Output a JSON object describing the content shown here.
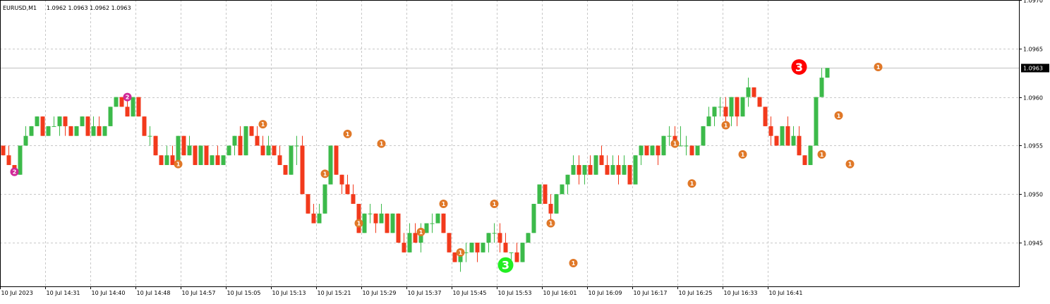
{
  "header": {
    "symbol": "EURUSD,M1",
    "ohlc": "1.0962 1.0963 1.0962 1.0963"
  },
  "price_label": {
    "value": "1.0963",
    "bg": "#000000",
    "line_color": "#c0c0c0"
  },
  "colors": {
    "bull": "#3cba4a",
    "bear": "#f23a1c",
    "grid": "#c8c8c8",
    "axis": "#000000",
    "marker_orange": "#e07828",
    "marker_magenta": "#d02898",
    "marker_red": "#ff0000",
    "marker_green": "#22ee22"
  },
  "chart_data": {
    "type": "candlestick",
    "title": "EURUSD,M1",
    "ylim": [
      1.09405,
      1.097
    ],
    "y_ticks": [
      "1.0970",
      "1.0965",
      "1.0960",
      "1.0955",
      "1.0950",
      "1.0945"
    ],
    "x_ticks": [
      "10 Jul 2023",
      "10 Jul 14:31",
      "10 Jul 14:40",
      "10 Jul 14:48",
      "10 Jul 14:57",
      "10 Jul 15:05",
      "10 Jul 15:13",
      "10 Jul 15:21",
      "10 Jul 15:29",
      "10 Jul 15:37",
      "10 Jul 15:45",
      "10 Jul 15:53",
      "10 Jul 16:01",
      "10 Jul 16:09",
      "10 Jul 16:17",
      "10 Jul 16:25",
      "10 Jul 16:33",
      "10 Jul 16:41"
    ],
    "candles": [
      [
        1.0955,
        1.0955,
        1.0954,
        1.0954
      ],
      [
        1.0954,
        1.0955,
        1.0953,
        1.0953
      ],
      [
        1.0953,
        1.0953,
        1.0952,
        1.0952
      ],
      [
        1.0952,
        1.0955,
        1.0952,
        1.0955
      ],
      [
        1.0955,
        1.0957,
        1.0955,
        1.0956
      ],
      [
        1.0956,
        1.0957,
        1.0956,
        1.0957
      ],
      [
        1.0957,
        1.0958,
        1.0957,
        1.0958
      ],
      [
        1.0958,
        1.0958,
        1.0956,
        1.0956
      ],
      [
        1.0956,
        1.0957,
        1.0956,
        1.0957
      ],
      [
        1.0957,
        1.0958,
        1.0957,
        1.0957
      ],
      [
        1.0957,
        1.0958,
        1.0956,
        1.0958
      ],
      [
        1.0958,
        1.0958,
        1.0956,
        1.0957
      ],
      [
        1.0957,
        1.0957,
        1.0956,
        1.0956
      ],
      [
        1.0956,
        1.0957,
        1.0956,
        1.0957
      ],
      [
        1.0957,
        1.0958,
        1.0957,
        1.0958
      ],
      [
        1.0958,
        1.0958,
        1.0956,
        1.0956
      ],
      [
        1.0956,
        1.0958,
        1.0956,
        1.0957
      ],
      [
        1.0957,
        1.0958,
        1.0956,
        1.0956
      ],
      [
        1.0956,
        1.0957,
        1.0956,
        1.0957
      ],
      [
        1.0957,
        1.0959,
        1.0957,
        1.0959
      ],
      [
        1.0959,
        1.096,
        1.0959,
        1.096
      ],
      [
        1.096,
        1.096,
        1.0959,
        1.0959
      ],
      [
        1.0959,
        1.096,
        1.0958,
        1.0958
      ],
      [
        1.0958,
        1.096,
        1.0958,
        1.096
      ],
      [
        1.096,
        1.096,
        1.0958,
        1.0958
      ],
      [
        1.0958,
        1.0958,
        1.0956,
        1.0956
      ],
      [
        1.0956,
        1.0957,
        1.0955,
        1.0956
      ],
      [
        1.0956,
        1.0956,
        1.0954,
        1.0954
      ],
      [
        1.0954,
        1.0954,
        1.0953,
        1.0953
      ],
      [
        1.0953,
        1.0955,
        1.0953,
        1.0954
      ],
      [
        1.0954,
        1.0955,
        1.0953,
        1.0953
      ],
      [
        1.0953,
        1.0956,
        1.0953,
        1.0956
      ],
      [
        1.0956,
        1.0956,
        1.0954,
        1.0954
      ],
      [
        1.0954,
        1.0956,
        1.0954,
        1.0955
      ],
      [
        1.0955,
        1.0955,
        1.0953,
        1.0953
      ],
      [
        1.0953,
        1.0955,
        1.0953,
        1.0955
      ],
      [
        1.0955,
        1.0955,
        1.0953,
        1.0953
      ],
      [
        1.0953,
        1.0954,
        1.0953,
        1.0954
      ],
      [
        1.0954,
        1.0955,
        1.0953,
        1.0953
      ],
      [
        1.0953,
        1.0954,
        1.0953,
        1.0954
      ],
      [
        1.0954,
        1.0955,
        1.0954,
        1.0955
      ],
      [
        1.0955,
        1.0956,
        1.0954,
        1.0956
      ],
      [
        1.0956,
        1.0957,
        1.0954,
        1.0954
      ],
      [
        1.0954,
        1.0957,
        1.0954,
        1.0957
      ],
      [
        1.0957,
        1.0957,
        1.0956,
        1.0956
      ],
      [
        1.0956,
        1.0957,
        1.0955,
        1.0955
      ],
      [
        1.0955,
        1.0956,
        1.0954,
        1.0954
      ],
      [
        1.0954,
        1.0956,
        1.0954,
        1.0955
      ],
      [
        1.0955,
        1.0955,
        1.0954,
        1.0954
      ],
      [
        1.0954,
        1.0955,
        1.0953,
        1.0953
      ],
      [
        1.0953,
        1.0953,
        1.0952,
        1.0952
      ],
      [
        1.0952,
        1.0955,
        1.0952,
        1.0955
      ],
      [
        1.0955,
        1.0956,
        1.0953,
        1.0955
      ],
      [
        1.0955,
        1.0956,
        1.095,
        1.095
      ],
      [
        1.095,
        1.095,
        1.0948,
        1.0948
      ],
      [
        1.0948,
        1.0949,
        1.0947,
        1.0947
      ],
      [
        1.0947,
        1.0949,
        1.0947,
        1.0948
      ],
      [
        1.0948,
        1.0951,
        1.0948,
        1.0951
      ],
      [
        1.0951,
        1.0955,
        1.0951,
        1.0955
      ],
      [
        1.0955,
        1.0955,
        1.0952,
        1.0952
      ],
      [
        1.0952,
        1.0952,
        1.095,
        1.0951
      ],
      [
        1.0951,
        1.0952,
        1.095,
        1.095
      ],
      [
        1.095,
        1.0951,
        1.0949,
        1.0949
      ],
      [
        1.0949,
        1.0949,
        1.0946,
        1.0946
      ],
      [
        1.0946,
        1.0948,
        1.0946,
        1.0948
      ],
      [
        1.0948,
        1.0949,
        1.0947,
        1.0948
      ],
      [
        1.0948,
        1.0948,
        1.0946,
        1.0947
      ],
      [
        1.0947,
        1.0949,
        1.0947,
        1.0948
      ],
      [
        1.0948,
        1.0948,
        1.0946,
        1.0946
      ],
      [
        1.0946,
        1.0948,
        1.0946,
        1.0948
      ],
      [
        1.0948,
        1.0948,
        1.0945,
        1.0945
      ],
      [
        1.0945,
        1.0946,
        1.0944,
        1.0944
      ],
      [
        1.0944,
        1.0947,
        1.0944,
        1.0946
      ],
      [
        1.0946,
        1.0947,
        1.0945,
        1.0945
      ],
      [
        1.0945,
        1.0947,
        1.0944,
        1.0946
      ],
      [
        1.0946,
        1.0947,
        1.0946,
        1.0947
      ],
      [
        1.0947,
        1.0948,
        1.0946,
        1.0947
      ],
      [
        1.0947,
        1.0948,
        1.0947,
        1.0948
      ],
      [
        1.0948,
        1.0948,
        1.0946,
        1.0946
      ],
      [
        1.0946,
        1.0946,
        1.0944,
        1.0944
      ],
      [
        1.0944,
        1.0944,
        1.0943,
        1.0943
      ],
      [
        1.0943,
        1.0944,
        1.0942,
        1.0944
      ],
      [
        1.0944,
        1.0945,
        1.0943,
        1.0944
      ],
      [
        1.0944,
        1.0945,
        1.0944,
        1.0945
      ],
      [
        1.0945,
        1.0945,
        1.0943,
        1.0944
      ],
      [
        1.0944,
        1.0945,
        1.0944,
        1.0945
      ],
      [
        1.0945,
        1.0946,
        1.0944,
        1.0946
      ],
      [
        1.0946,
        1.0947,
        1.0945,
        1.0946
      ],
      [
        1.0946,
        1.0947,
        1.0944,
        1.0945
      ],
      [
        1.0945,
        1.0946,
        1.0944,
        1.0944
      ],
      [
        1.0944,
        1.0944,
        1.0943,
        1.0944
      ],
      [
        1.0944,
        1.0945,
        1.0943,
        1.0943
      ],
      [
        1.0943,
        1.0945,
        1.0943,
        1.0945
      ],
      [
        1.0945,
        1.0946,
        1.0945,
        1.0946
      ],
      [
        1.0946,
        1.0949,
        1.0946,
        1.0949
      ],
      [
        1.0949,
        1.0951,
        1.0949,
        1.0951
      ],
      [
        1.0951,
        1.0951,
        1.0949,
        1.0949
      ],
      [
        1.0949,
        1.095,
        1.0947,
        1.0948
      ],
      [
        1.0948,
        1.095,
        1.0948,
        1.095
      ],
      [
        1.095,
        1.0951,
        1.095,
        1.0951
      ],
      [
        1.0951,
        1.0952,
        1.095,
        1.0952
      ],
      [
        1.0952,
        1.0954,
        1.0952,
        1.0953
      ],
      [
        1.0953,
        1.0954,
        1.0951,
        1.0952
      ],
      [
        1.0952,
        1.0953,
        1.0951,
        1.0953
      ],
      [
        1.0953,
        1.0954,
        1.0952,
        1.0952
      ],
      [
        1.0952,
        1.0954,
        1.0952,
        1.0954
      ],
      [
        1.0954,
        1.0955,
        1.0953,
        1.0953
      ],
      [
        1.0953,
        1.0954,
        1.0952,
        1.0952
      ],
      [
        1.0952,
        1.0954,
        1.0952,
        1.0953
      ],
      [
        1.0953,
        1.0954,
        1.0951,
        1.0952
      ],
      [
        1.0952,
        1.0954,
        1.0952,
        1.0953
      ],
      [
        1.0953,
        1.0953,
        1.0951,
        1.0951
      ],
      [
        1.0951,
        1.0954,
        1.0951,
        1.0954
      ],
      [
        1.0954,
        1.0955,
        1.0953,
        1.0955
      ],
      [
        1.0955,
        1.0955,
        1.0954,
        1.0954
      ],
      [
        1.0954,
        1.0955,
        1.0954,
        1.0955
      ],
      [
        1.0955,
        1.0955,
        1.0953,
        1.0954
      ],
      [
        1.0954,
        1.0956,
        1.0954,
        1.0956
      ],
      [
        1.0956,
        1.0957,
        1.0955,
        1.0956
      ],
      [
        1.0956,
        1.0957,
        1.0955,
        1.0955
      ],
      [
        1.0955,
        1.0957,
        1.0955,
        1.0955
      ],
      [
        1.0955,
        1.0956,
        1.0954,
        1.0955
      ],
      [
        1.0955,
        1.0955,
        1.0954,
        1.0954
      ],
      [
        1.0954,
        1.0955,
        1.0954,
        1.0955
      ],
      [
        1.0955,
        1.0957,
        1.0955,
        1.0957
      ],
      [
        1.0957,
        1.0959,
        1.0957,
        1.0958
      ],
      [
        1.0958,
        1.0959,
        1.0957,
        1.0959
      ],
      [
        1.0959,
        1.096,
        1.0958,
        1.0959
      ],
      [
        1.0959,
        1.096,
        1.0957,
        1.0958
      ],
      [
        1.0958,
        1.096,
        1.0957,
        1.096
      ],
      [
        1.096,
        1.096,
        1.0957,
        1.0958
      ],
      [
        1.0958,
        1.096,
        1.0958,
        1.096
      ],
      [
        1.096,
        1.0962,
        1.0959,
        1.0961
      ],
      [
        1.0961,
        1.0961,
        1.096,
        1.096
      ],
      [
        1.096,
        1.096,
        1.0959,
        1.0959
      ],
      [
        1.0959,
        1.0959,
        1.0957,
        1.0957
      ],
      [
        1.0957,
        1.0958,
        1.0955,
        1.0956
      ],
      [
        1.0956,
        1.0956,
        1.0955,
        1.0955
      ],
      [
        1.0955,
        1.0957,
        1.0955,
        1.0957
      ],
      [
        1.0957,
        1.0958,
        1.0955,
        1.0955
      ],
      [
        1.0955,
        1.0957,
        1.0955,
        1.0956
      ],
      [
        1.0956,
        1.0957,
        1.0954,
        1.0954
      ],
      [
        1.0954,
        1.0954,
        1.0953,
        1.0953
      ],
      [
        1.0953,
        1.0955,
        1.0953,
        1.0955
      ],
      [
        1.0955,
        1.096,
        1.0955,
        1.096
      ],
      [
        1.096,
        1.0963,
        1.096,
        1.0962
      ],
      [
        1.0962,
        1.0963,
        1.0962,
        1.0963
      ]
    ],
    "markers": [
      {
        "label": "2",
        "color": "magenta",
        "candle": 2,
        "price": 1.09523,
        "size": "small"
      },
      {
        "label": "2",
        "color": "magenta",
        "candle": 22,
        "price": 1.096,
        "size": "small"
      },
      {
        "label": "1",
        "color": "orange",
        "candle": 31,
        "price": 1.09531,
        "size": "small"
      },
      {
        "label": "1",
        "color": "orange",
        "candle": 46,
        "price": 1.09572,
        "size": "small"
      },
      {
        "label": "1",
        "color": "orange",
        "candle": 57,
        "price": 1.09521,
        "size": "small"
      },
      {
        "label": "1",
        "color": "orange",
        "candle": 61,
        "price": 1.09562,
        "size": "small"
      },
      {
        "label": "1",
        "color": "orange",
        "candle": 63,
        "price": 1.0947,
        "size": "small"
      },
      {
        "label": "1",
        "color": "orange",
        "candle": 67,
        "price": 1.09552,
        "size": "small"
      },
      {
        "label": "1",
        "color": "orange",
        "candle": 74,
        "price": 1.09461,
        "size": "small"
      },
      {
        "label": "1",
        "color": "orange",
        "candle": 78,
        "price": 1.0949,
        "size": "small"
      },
      {
        "label": "1",
        "color": "orange",
        "candle": 81,
        "price": 1.0944,
        "size": "small"
      },
      {
        "label": "1",
        "color": "orange",
        "candle": 87,
        "price": 1.0949,
        "size": "small"
      },
      {
        "label": "3",
        "color": "green",
        "candle": 89,
        "price": 1.09427,
        "size": "large"
      },
      {
        "label": "1",
        "color": "orange",
        "candle": 97,
        "price": 1.0947,
        "size": "small"
      },
      {
        "label": "1",
        "color": "orange",
        "candle": 101,
        "price": 1.09429,
        "size": "small"
      },
      {
        "label": "1",
        "color": "orange",
        "candle": 119,
        "price": 1.09552,
        "size": "small"
      },
      {
        "label": "1",
        "color": "orange",
        "candle": 122,
        "price": 1.09511,
        "size": "small"
      },
      {
        "label": "1",
        "color": "orange",
        "candle": 128,
        "price": 1.09571,
        "size": "small"
      },
      {
        "label": "1",
        "color": "orange",
        "candle": 131,
        "price": 1.09541,
        "size": "small"
      },
      {
        "label": "3",
        "color": "red",
        "candle": 141,
        "price": 1.09631,
        "size": "large"
      },
      {
        "label": "1",
        "color": "orange",
        "candle": 145,
        "price": 1.09541,
        "size": "small"
      },
      {
        "label": "1",
        "color": "orange",
        "candle": 148,
        "price": 1.09581,
        "size": "small"
      },
      {
        "label": "1",
        "color": "orange",
        "candle": 150,
        "price": 1.09531,
        "size": "small"
      },
      {
        "label": "1",
        "color": "orange",
        "candle": 155,
        "price": 1.09631,
        "size": "small"
      }
    ]
  }
}
